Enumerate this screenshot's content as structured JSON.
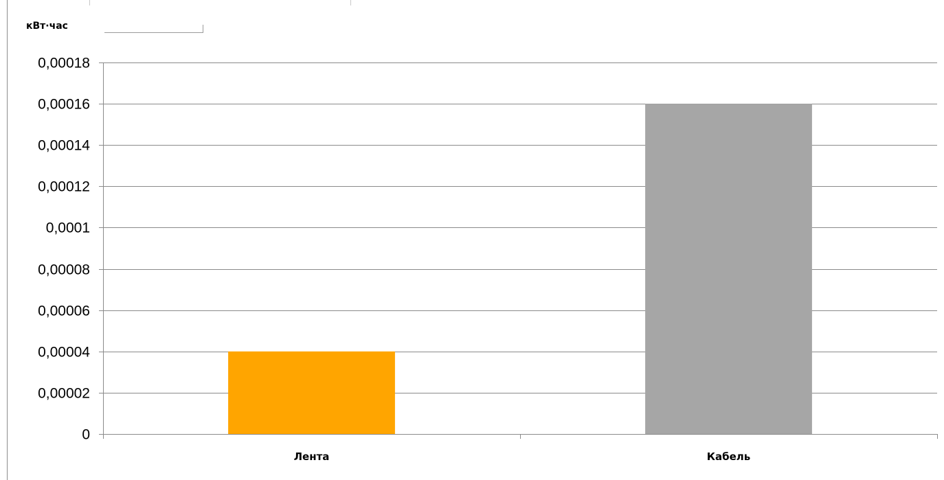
{
  "chart_data": {
    "type": "bar",
    "ylabel": "кВт·час",
    "categories": [
      "Лента",
      "Кабель"
    ],
    "values": [
      4e-05,
      0.00016
    ],
    "colors": [
      "#FFA500",
      "#A6A6A6"
    ],
    "ylim": [
      0,
      0.00018
    ],
    "yticks": [
      0,
      2e-05,
      4e-05,
      6e-05,
      8e-05,
      0.0001,
      0.00012,
      0.00014,
      0.00016,
      0.00018
    ],
    "ytick_labels": [
      "0",
      "0,00002",
      "0,00004",
      "0,00006",
      "0,00008",
      "0,0001",
      "0,00012",
      "0,00014",
      "0,00016",
      "0,00018"
    ],
    "grid": true,
    "legend": false
  }
}
